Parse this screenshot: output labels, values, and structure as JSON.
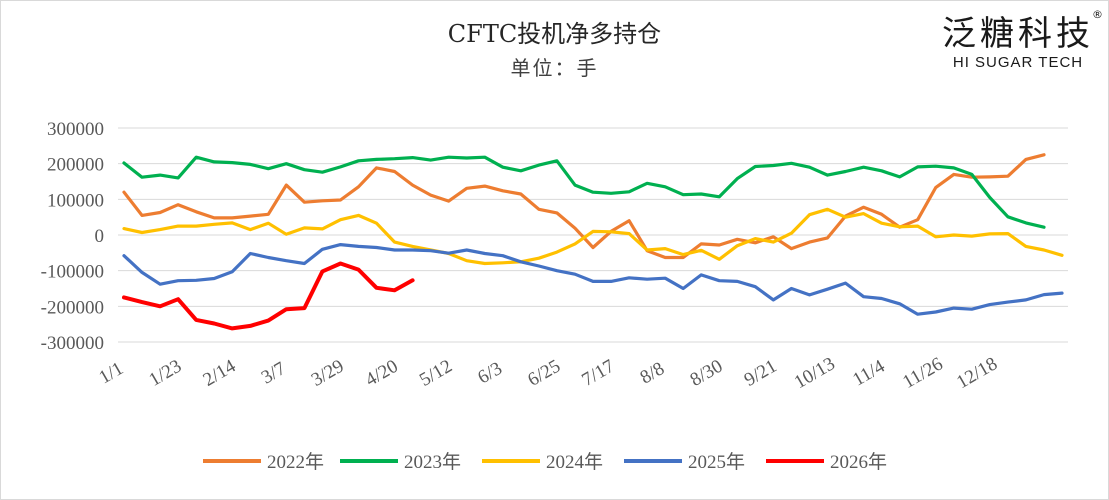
{
  "header": {
    "title": "CFTC投机净多持仓",
    "subtitle": "单位：手"
  },
  "logo": {
    "cn": "泛糖科技",
    "en": "HI SUGAR TECH",
    "reg": "®"
  },
  "chart_data": {
    "type": "line",
    "title": "CFTC投机净多持仓",
    "subtitle": "单位：手",
    "ylim": [
      -300000,
      300000
    ],
    "yticks": [
      300000,
      200000,
      100000,
      0,
      -100000,
      -200000,
      -300000
    ],
    "ytick_labels": [
      "300000",
      "200000",
      "100000",
      "0",
      "-100000",
      "-200000",
      "-300000"
    ],
    "x_count": 53,
    "xtick_labels": [
      "1/1",
      "1/23",
      "2/14",
      "3/7",
      "3/29",
      "4/20",
      "5/12",
      "6/3",
      "6/25",
      "7/17",
      "8/8",
      "8/30",
      "9/21",
      "10/13",
      "11/4",
      "11/26",
      "12/18"
    ],
    "xtick_indices": [
      0,
      3,
      6,
      9,
      12,
      15,
      18,
      21,
      24,
      27,
      30,
      33,
      36,
      39,
      42,
      45,
      48
    ],
    "grid": "horizontal",
    "legend_position": "bottom",
    "series": [
      {
        "name": "2022年",
        "color": "#ED7D31",
        "values": [
          120000,
          55000,
          63000,
          85000,
          65000,
          48000,
          48000,
          53000,
          58000,
          140000,
          92000,
          96000,
          98000,
          135000,
          188000,
          178000,
          140000,
          112000,
          95000,
          131000,
          137000,
          124000,
          115000,
          72000,
          62000,
          19000,
          -35000,
          10000,
          40000,
          -44000,
          -63000,
          -63000,
          -25000,
          -28000,
          -12000,
          -22000,
          -5000,
          -38000,
          -20000,
          -8000,
          53000,
          78000,
          58000,
          22000,
          43000,
          133000,
          170000,
          162000,
          163000,
          165000,
          212000,
          225000
        ]
      },
      {
        "name": "2023年",
        "color": "#00B050",
        "values": [
          202000,
          162000,
          168000,
          160000,
          218000,
          205000,
          203000,
          198000,
          186000,
          200000,
          183000,
          176000,
          191000,
          208000,
          212000,
          214000,
          217000,
          210000,
          218000,
          216000,
          218000,
          190000,
          180000,
          196000,
          208000,
          140000,
          120000,
          117000,
          121000,
          145000,
          135000,
          113000,
          115000,
          107000,
          158000,
          192000,
          195000,
          201000,
          190000,
          168000,
          178000,
          190000,
          180000,
          163000,
          191000,
          193000,
          188000,
          170000,
          105000,
          51000,
          34000,
          22000
        ]
      },
      {
        "name": "2024年",
        "color": "#FFC000",
        "values": [
          18000,
          7000,
          15000,
          25000,
          25000,
          30000,
          34000,
          15000,
          33000,
          2000,
          20000,
          17000,
          43000,
          55000,
          33000,
          -20000,
          -32000,
          -42000,
          -52000,
          -72000,
          -80000,
          -78000,
          -75000,
          -65000,
          -48000,
          -25000,
          10000,
          9000,
          4000,
          -42000,
          -38000,
          -55000,
          -43000,
          -68000,
          -30000,
          -10000,
          -20000,
          5000,
          57000,
          72000,
          50000,
          60000,
          33000,
          23000,
          25000,
          -5000,
          0,
          -3000,
          3000,
          4000,
          -32000,
          -42000,
          -57000
        ]
      },
      {
        "name": "2025年",
        "color": "#4472C4",
        "values": [
          -58000,
          -105000,
          -138000,
          -128000,
          -127000,
          -122000,
          -103000,
          -52000,
          -63000,
          -72000,
          -80000,
          -40000,
          -27000,
          -32000,
          -35000,
          -42000,
          -42000,
          -44000,
          -51000,
          -42000,
          -52000,
          -58000,
          -75000,
          -87000,
          -100000,
          -110000,
          -130000,
          -130000,
          -120000,
          -124000,
          -121000,
          -150000,
          -112000,
          -128000,
          -130000,
          -145000,
          -182000,
          -150000,
          -168000,
          -152000,
          -135000,
          -173000,
          -178000,
          -193000,
          -222000,
          -216000,
          -205000,
          -208000,
          -195000,
          -188000,
          -182000,
          -167000,
          -163000
        ]
      },
      {
        "name": "2026年",
        "color": "#FF0000",
        "values": [
          -175000,
          -188000,
          -200000,
          -180000,
          -238000,
          -248000,
          -262000,
          -255000,
          -240000,
          -208000,
          -205000,
          -102000,
          -80000,
          -97000,
          -148000,
          -155000,
          -127000
        ]
      }
    ]
  }
}
